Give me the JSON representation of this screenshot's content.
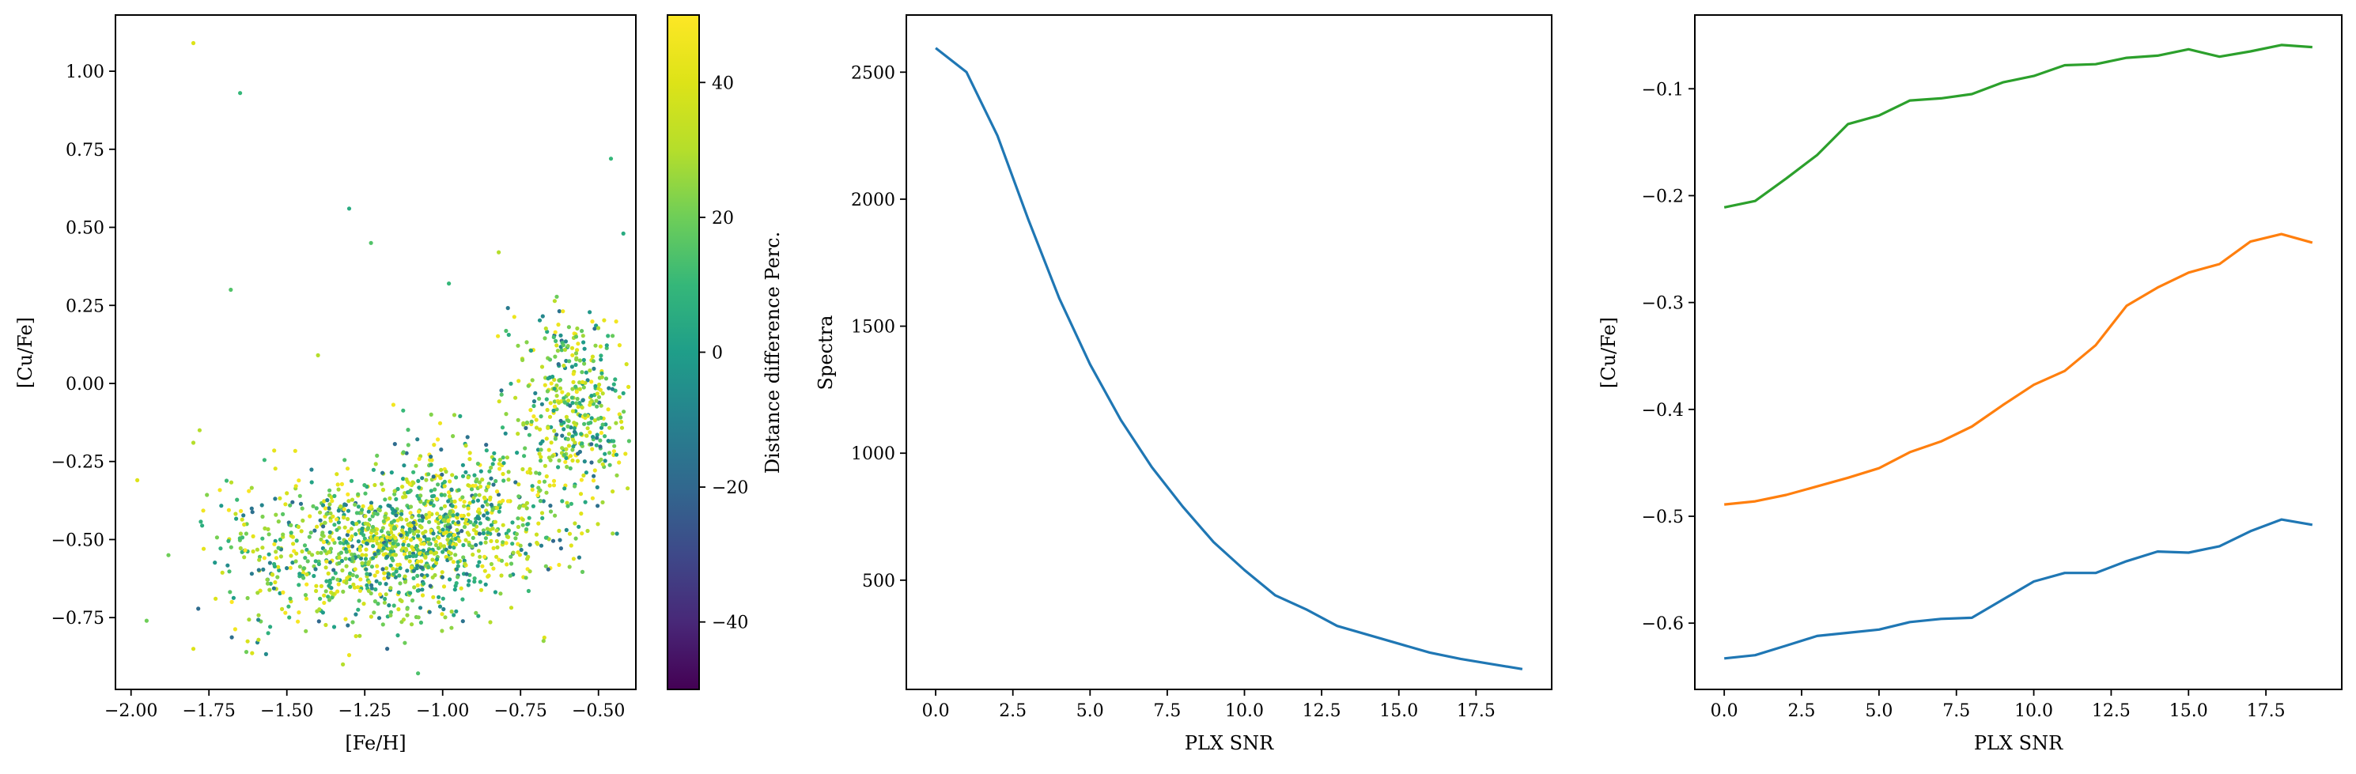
{
  "chart_data": [
    {
      "type": "scatter",
      "xlabel": "[Fe/H]",
      "ylabel": "[Cu/Fe]",
      "xlim": [
        -2.05,
        -0.38
      ],
      "ylim": [
        -0.98,
        1.18
      ],
      "xticks": [
        -2.0,
        -1.75,
        -1.5,
        -1.25,
        -1.0,
        -0.75,
        -0.5
      ],
      "xtick_labels": [
        "−2.00",
        "−1.75",
        "−1.50",
        "−1.25",
        "−1.00",
        "−0.75",
        "−0.50"
      ],
      "yticks": [
        -0.75,
        -0.5,
        -0.25,
        0.0,
        0.25,
        0.5,
        0.75,
        1.0
      ],
      "ytick_labels": [
        "−0.75",
        "−0.50",
        "−0.25",
        "0.00",
        "0.25",
        "0.50",
        "0.75",
        "1.00"
      ],
      "colormap": "viridis",
      "colorbar": {
        "label": "Distance difference Perc.",
        "range": [
          -50,
          50
        ],
        "ticks": [
          -40,
          -20,
          0,
          20,
          40
        ],
        "tick_labels": [
          "−40",
          "−20",
          "0",
          "20",
          "40"
        ]
      },
      "outlier_points": [
        {
          "x": -1.8,
          "y": 1.09,
          "c": 40
        },
        {
          "x": -1.65,
          "y": 0.93,
          "c": 10
        },
        {
          "x": -1.3,
          "y": 0.56,
          "c": 5
        },
        {
          "x": -1.23,
          "y": 0.45,
          "c": 15
        },
        {
          "x": -1.68,
          "y": 0.3,
          "c": 15
        },
        {
          "x": -0.98,
          "y": 0.32,
          "c": 10
        },
        {
          "x": -0.82,
          "y": 0.42,
          "c": 30
        },
        {
          "x": -0.46,
          "y": 0.72,
          "c": 10
        },
        {
          "x": -0.42,
          "y": 0.48,
          "c": 5
        },
        {
          "x": -1.98,
          "y": -0.31,
          "c": 40
        },
        {
          "x": -1.95,
          "y": -0.76,
          "c": 20
        },
        {
          "x": -1.8,
          "y": -0.85,
          "c": 40
        },
        {
          "x": -1.78,
          "y": -0.15,
          "c": 30
        },
        {
          "x": -1.8,
          "y": -0.19,
          "c": 30
        },
        {
          "x": -1.4,
          "y": 0.09,
          "c": 30
        },
        {
          "x": -1.3,
          "y": -0.87,
          "c": 45
        },
        {
          "x": -1.32,
          "y": -0.9,
          "c": 30
        },
        {
          "x": -1.63,
          "y": -0.86,
          "c": 20
        },
        {
          "x": -1.88,
          "y": -0.55,
          "c": 20
        }
      ],
      "clusters": [
        {
          "cx": -1.22,
          "cy": -0.52,
          "sx": 0.15,
          "sy": 0.11,
          "n": 700
        },
        {
          "cx": -0.98,
          "cy": -0.44,
          "sx": 0.12,
          "sy": 0.13,
          "n": 380
        },
        {
          "cx": -0.58,
          "cy": -0.08,
          "sx": 0.1,
          "sy": 0.15,
          "n": 420
        },
        {
          "cx": -1.55,
          "cy": -0.55,
          "sx": 0.12,
          "sy": 0.14,
          "n": 150
        },
        {
          "cx": -0.75,
          "cy": -0.45,
          "sx": 0.12,
          "sy": 0.12,
          "n": 150
        }
      ]
    },
    {
      "type": "line",
      "xlabel": "PLX SNR",
      "ylabel": "Spectra",
      "xlim": [
        -0.95,
        19.95
      ],
      "ylim": [
        70,
        2725
      ],
      "xticks": [
        0.0,
        2.5,
        5.0,
        7.5,
        10.0,
        12.5,
        15.0,
        17.5
      ],
      "xtick_labels": [
        "0.0",
        "2.5",
        "5.0",
        "7.5",
        "10.0",
        "12.5",
        "15.0",
        "17.5"
      ],
      "yticks": [
        500,
        1000,
        1500,
        2000,
        2500
      ],
      "ytick_labels": [
        "500",
        "1000",
        "1500",
        "2000",
        "2500"
      ],
      "x": [
        0,
        1,
        2,
        3,
        4,
        5,
        6,
        7,
        8,
        9,
        10,
        11,
        12,
        13,
        14,
        15,
        16,
        17,
        18,
        19
      ],
      "series": [
        {
          "color": "#1f77b4",
          "values": [
            2595,
            2500,
            2250,
            1920,
            1610,
            1350,
            1130,
            945,
            790,
            650,
            540,
            440,
            385,
            320,
            285,
            250,
            215,
            190,
            170,
            150
          ]
        }
      ]
    },
    {
      "type": "line",
      "xlabel": "PLX SNR",
      "ylabel": "[Cu/Fe]",
      "xlim": [
        -0.95,
        19.95
      ],
      "ylim": [
        -0.662,
        -0.031
      ],
      "xticks": [
        0.0,
        2.5,
        5.0,
        7.5,
        10.0,
        12.5,
        15.0,
        17.5
      ],
      "xtick_labels": [
        "0.0",
        "2.5",
        "5.0",
        "7.5",
        "10.0",
        "12.5",
        "15.0",
        "17.5"
      ],
      "yticks": [
        -0.6,
        -0.5,
        -0.4,
        -0.3,
        -0.2,
        -0.1
      ],
      "ytick_labels": [
        "−0.6",
        "−0.5",
        "−0.4",
        "−0.3",
        "−0.2",
        "−0.1"
      ],
      "x": [
        0,
        1,
        2,
        3,
        4,
        5,
        6,
        7,
        8,
        9,
        10,
        11,
        12,
        13,
        14,
        15,
        16,
        17,
        18,
        19
      ],
      "series": [
        {
          "color": "#1f77b4",
          "values": [
            -0.633,
            -0.63,
            -0.621,
            -0.612,
            -0.609,
            -0.606,
            -0.599,
            -0.596,
            -0.595,
            -0.578,
            -0.561,
            -0.553,
            -0.553,
            -0.542,
            -0.533,
            -0.534,
            -0.528,
            -0.514,
            -0.503,
            -0.508
          ]
        },
        {
          "color": "#ff7f0e",
          "values": [
            -0.489,
            -0.486,
            -0.48,
            -0.472,
            -0.464,
            -0.455,
            -0.44,
            -0.43,
            -0.416,
            -0.396,
            -0.377,
            -0.364,
            -0.34,
            -0.303,
            -0.286,
            -0.272,
            -0.264,
            -0.243,
            -0.236,
            -0.244
          ]
        },
        {
          "color": "#2ca02c",
          "values": [
            -0.211,
            -0.205,
            -0.184,
            -0.162,
            -0.133,
            -0.125,
            -0.111,
            -0.109,
            -0.105,
            -0.094,
            -0.088,
            -0.078,
            -0.077,
            -0.071,
            -0.069,
            -0.063,
            -0.07,
            -0.065,
            -0.059,
            -0.061
          ]
        }
      ]
    }
  ]
}
